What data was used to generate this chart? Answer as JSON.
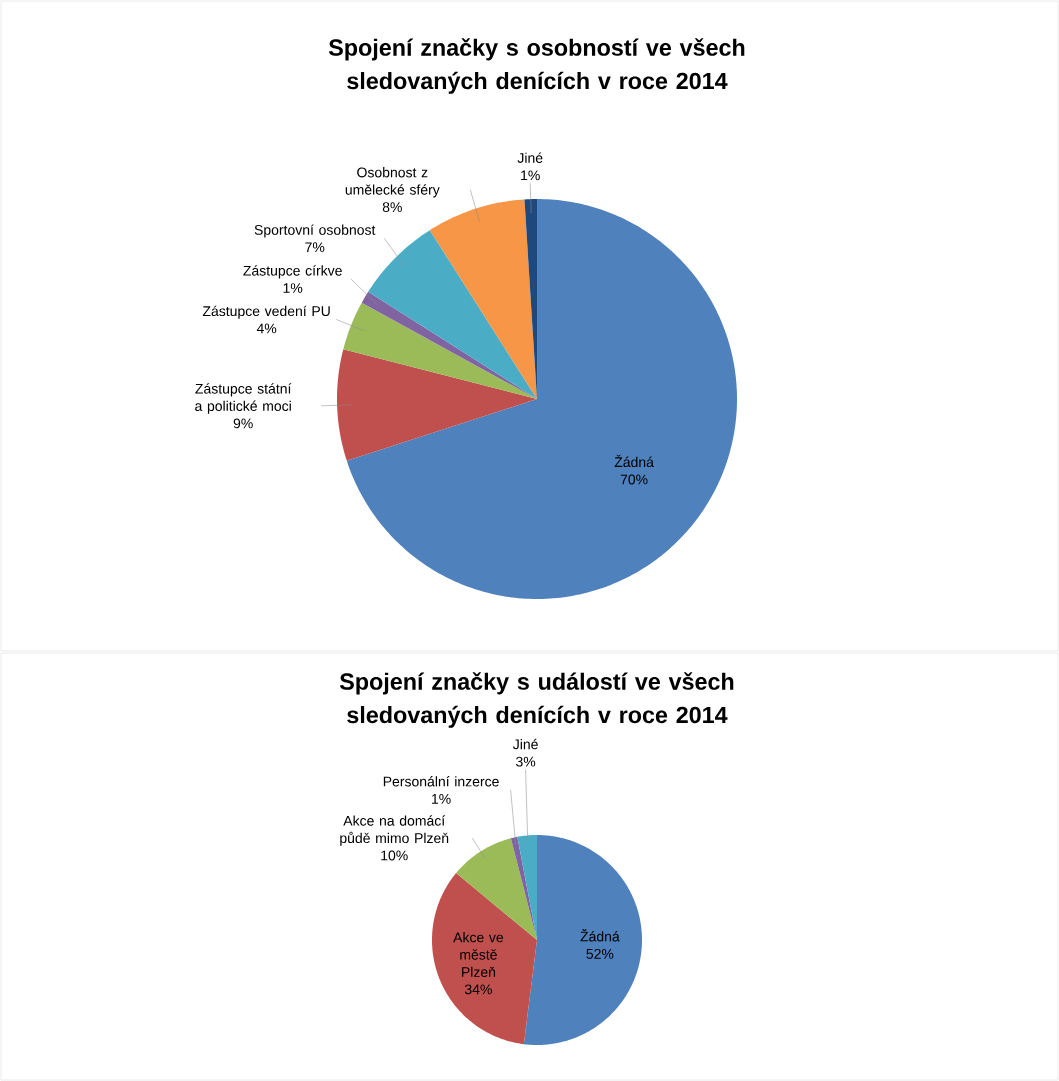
{
  "chart_data": [
    {
      "type": "pie",
      "title": "Spojení značky s osobností ve všech sledovaných denících v roce 2014",
      "categories": [
        "Žádná",
        "Zástupce státní a politické moci",
        "Zástupce vedení PU",
        "Zástupce církve",
        "Sportovní osobnost",
        "Osobnost z umělecké sféry",
        "Jiné"
      ],
      "values": [
        70,
        9,
        4,
        1,
        7,
        8,
        1
      ],
      "value_labels": [
        "70%",
        "9%",
        "4%",
        "1%",
        "7%",
        "8%",
        "1%"
      ],
      "colors": [
        "#4f81bd",
        "#c0504d",
        "#9bbb59",
        "#8064a2",
        "#4bacc6",
        "#f79646",
        "#1f497d"
      ]
    },
    {
      "type": "pie",
      "title": "Spojení značky s událostí ve všech sledovaných denících v roce 2014",
      "categories": [
        "Žádná",
        "Akce ve městě Plzeň",
        "Akce na domácí půdě mimo Plzeň",
        "Personální inzerce",
        "Jiné"
      ],
      "values": [
        52,
        34,
        10,
        1,
        3
      ],
      "value_labels": [
        "52%",
        "34%",
        "10%",
        "1%",
        "3%"
      ],
      "colors": [
        "#4f81bd",
        "#c0504d",
        "#9bbb59",
        "#8064a2",
        "#4bacc6"
      ]
    }
  ]
}
